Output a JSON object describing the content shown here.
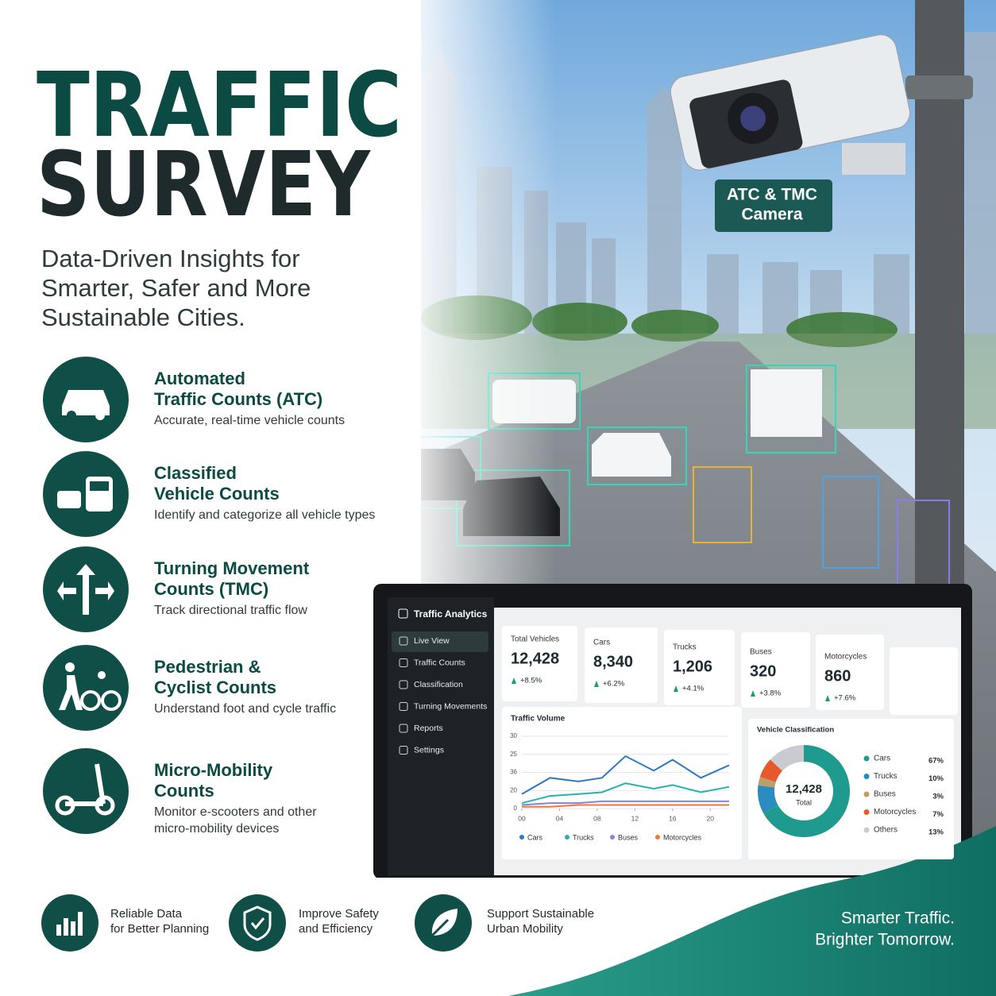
{
  "header": {
    "title_lines": [
      "TRAFFIC",
      "SURVEY"
    ],
    "subtitle_lines": [
      "Data-Driven Insights for",
      "Smarter, Safer and More",
      "Sustainable Cities."
    ]
  },
  "camera_label_lines": [
    "ATC & TMC",
    "Camera"
  ],
  "features": [
    {
      "title_lines": [
        "Automated",
        "Traffic Counts (ATC)"
      ],
      "description_lines": [
        "Accurate, real-time vehicle counts"
      ]
    },
    {
      "title_lines": [
        "Classified",
        "Vehicle Counts"
      ],
      "description_lines": [
        "Identify and categorize all vehicle types"
      ]
    },
    {
      "title_lines": [
        "Turning Movement",
        "Counts (TMC)"
      ],
      "description_lines": [
        "Track directional traffic flow"
      ]
    },
    {
      "title_lines": [
        "Pedestrian &",
        "Cyclist Counts"
      ],
      "description_lines": [
        "Understand foot and cycle traffic"
      ]
    },
    {
      "title_lines": [
        "Micro-Mobility",
        "Counts"
      ],
      "description_lines": [
        "Monitor e-scooters and other",
        "micro-mobility devices"
      ]
    }
  ],
  "dashboard": {
    "app_title": "Traffic Analytics",
    "menu": [
      "Live View",
      "Traffic Counts",
      "Classification",
      "Turning Movements",
      "Reports",
      "Settings"
    ],
    "kpis": [
      {
        "label": "Total Vehicles",
        "value": "12,428",
        "change": "+8.5%"
      },
      {
        "label": "Cars",
        "value": "8,340",
        "change": "+6.2%"
      },
      {
        "label": "Trucks",
        "value": "1,206",
        "change": "+4.1%"
      },
      {
        "label": "Buses",
        "value": "320",
        "change": "+3.8%"
      },
      {
        "label": "Motorcycles",
        "value": "860",
        "change": "+7.6%"
      }
    ],
    "traffic_volume": {
      "type": "line",
      "title": "Traffic Volume",
      "x": [
        0,
        3,
        6,
        8.5,
        11,
        14,
        16,
        19,
        22
      ],
      "xlim": [
        0,
        22
      ],
      "xticks": [
        {
          "value": 0,
          "label": "00"
        },
        {
          "value": 4,
          "label": "04"
        },
        {
          "value": 8,
          "label": "08"
        },
        12,
        16,
        20
      ],
      "ylim": [
        0,
        40
      ],
      "yticks": [
        0,
        {
          "value": 10,
          "label": "20"
        },
        {
          "value": 20,
          "label": "36"
        },
        {
          "value": 30,
          "label": "25"
        },
        {
          "value": 40,
          "label": "30"
        }
      ],
      "grid": true,
      "series": [
        {
          "name": "Cars",
          "color": "#2f78c4",
          "values": [
            8,
            17,
            15,
            17,
            29,
            21,
            27,
            17,
            24
          ]
        },
        {
          "name": "Trucks",
          "color": "#22b3b0",
          "values": [
            3,
            7,
            8,
            9,
            14,
            11,
            13,
            9,
            12
          ]
        },
        {
          "name": "Buses",
          "color": "#8c7fd6",
          "values": [
            2,
            3,
            3,
            4,
            4,
            4,
            4,
            4,
            4
          ]
        },
        {
          "name": "Motorcycles",
          "color": "#ee7a33",
          "values": [
            1,
            1,
            2,
            2,
            2,
            2,
            2,
            2,
            2
          ]
        }
      ]
    },
    "vehicle_classification": {
      "type": "pie",
      "title": "Vehicle Classification",
      "center_value": "12,428",
      "center_label": "Total",
      "categories": [
        "Cars",
        "Trucks",
        "Buses",
        "Motorcycles",
        "Others"
      ],
      "values": [
        67,
        10,
        3,
        7,
        13
      ],
      "value_labels": [
        "67%",
        "10%",
        "3%",
        "7%",
        "13%"
      ],
      "colors": [
        "#1f9a8e",
        "#2a8cc0",
        "#b9a06b",
        "#e8582d",
        "#c9cbd0"
      ]
    }
  },
  "benefits": [
    {
      "lines": [
        "Reliable Data",
        "for Better Planning"
      ]
    },
    {
      "lines": [
        "Improve Safety",
        "and Efficiency"
      ]
    },
    {
      "lines": [
        "Support Sustainable",
        "Urban Mobility"
      ]
    }
  ],
  "tagline_lines": [
    "Smarter Traffic.",
    "Brighter Tomorrow."
  ]
}
